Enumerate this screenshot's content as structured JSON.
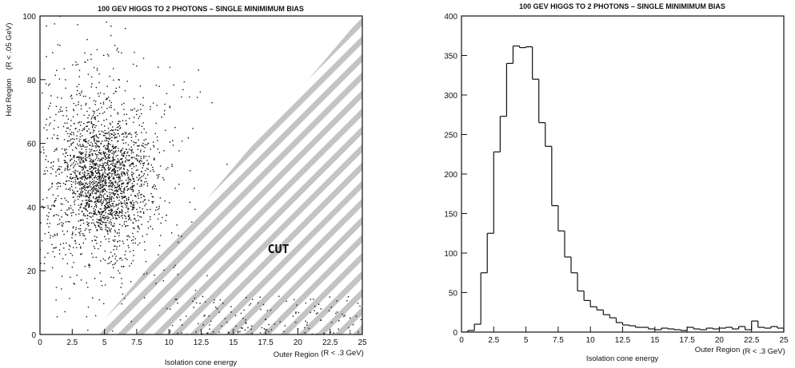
{
  "chart_data": [
    {
      "type": "scatter",
      "title": "100 GEV HIGGS TO 2 PHOTONS – SINGLE MINIMIMUM BIAS",
      "xlabel": "Isolation cone energy",
      "xlabel_region": "Outer Region",
      "xlabel_unit": "(R < .3 GeV)",
      "ylabel": "Hot Region",
      "ylabel_unit": "(R < .05 GeV)",
      "xlim": [
        0,
        25
      ],
      "ylim": [
        0,
        100
      ],
      "xticks": [
        "0",
        "2.5",
        "5",
        "7.5",
        "10",
        "12.5",
        "15",
        "17.5",
        "20",
        "22.5",
        "25"
      ],
      "yticks": [
        "0",
        "20",
        "40",
        "60",
        "80",
        "100"
      ],
      "annotation": "CUT",
      "cut_region": {
        "boundary_line": [
          [
            4,
            0
          ],
          [
            25,
            100
          ]
        ],
        "side": "below-right",
        "fill": "diagonal-stripes"
      },
      "clusters": [
        {
          "center_x": 5.0,
          "center_y": 48,
          "spread_x": 1.8,
          "spread_y": 10,
          "count": 1500
        },
        {
          "center_x": 4.5,
          "center_y": 50,
          "spread_x": 3.2,
          "spread_y": 20,
          "count": 900
        }
      ],
      "sparse_region": {
        "x_range": [
          10,
          25
        ],
        "y_range": [
          0,
          12
        ],
        "count": 150
      },
      "grid": false
    },
    {
      "type": "histogram",
      "title": "100 GEV HIGGS TO 2 PHOTONS – SINGLE MINIMIMUM BIAS",
      "xlabel": "Isolation cone energy",
      "xlabel_region": "Outer Region",
      "xlabel_unit": "(R < .3 GeV)",
      "xlim": [
        0,
        25
      ],
      "ylim": [
        0,
        400
      ],
      "xticks": [
        "0",
        "2.5",
        "5",
        "7.5",
        "10",
        "12.5",
        "15",
        "17.5",
        "20",
        "22.5",
        "25"
      ],
      "yticks": [
        "0",
        "50",
        "100",
        "150",
        "200",
        "250",
        "300",
        "350",
        "400"
      ],
      "bin_width": 0.5,
      "bin_start": 0,
      "values": [
        0,
        2,
        10,
        75,
        125,
        228,
        273,
        340,
        362,
        360,
        361,
        320,
        265,
        235,
        160,
        128,
        95,
        75,
        52,
        40,
        32,
        28,
        22,
        18,
        12,
        9,
        8,
        6,
        6,
        4,
        3,
        5,
        4,
        3,
        2,
        6,
        4,
        3,
        5,
        4,
        5,
        6,
        4,
        7,
        3,
        14,
        6,
        5,
        7,
        5
      ],
      "grid": false
    }
  ],
  "colors": {
    "ink": "#111111",
    "stripe": "#c4c4c4",
    "background": "#ffffff"
  }
}
